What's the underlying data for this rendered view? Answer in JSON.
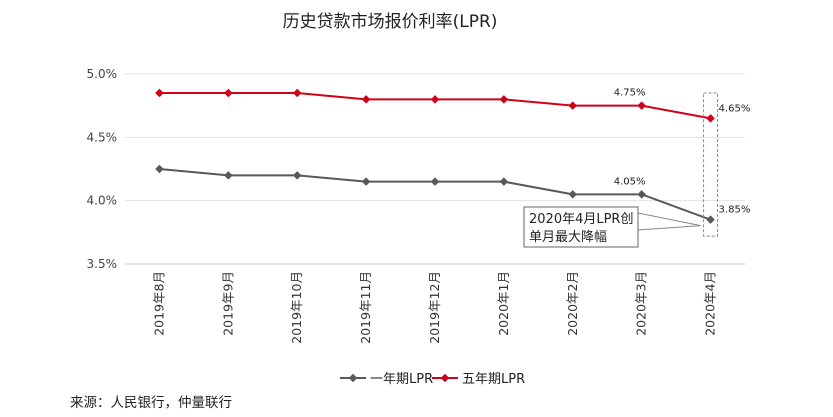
{
  "chart_data": {
    "type": "line",
    "title": "历史贷款市场报价利率(LPR)",
    "categories": [
      "2019年8月",
      "2019年9月",
      "2019年10月",
      "2019年11月",
      "2019年12月",
      "2020年1月",
      "2020年2月",
      "2020年3月",
      "2020年4月"
    ],
    "series": [
      {
        "name": "一年期LPR",
        "color": "#595959",
        "values": [
          4.25,
          4.2,
          4.2,
          4.15,
          4.15,
          4.15,
          4.05,
          4.05,
          3.85
        ]
      },
      {
        "name": "五年期LPR",
        "color": "#d0021b",
        "values": [
          4.85,
          4.85,
          4.85,
          4.8,
          4.8,
          4.8,
          4.75,
          4.75,
          4.65
        ]
      }
    ],
    "ylim": [
      3.5,
      5.0
    ],
    "yticks": [
      "3.5%",
      "4.0%",
      "4.5%",
      "5.0%"
    ],
    "grid": "horizontal",
    "legend": "bottom",
    "data_labels": [
      {
        "series": 0,
        "index": 7,
        "text": "4.05%"
      },
      {
        "series": 0,
        "index": 8,
        "text": "3.85%"
      },
      {
        "series": 1,
        "index": 7,
        "text": "4.75%"
      },
      {
        "series": 1,
        "index": 8,
        "text": "4.65%"
      }
    ],
    "annotation": {
      "lines": [
        "2020年4月LPR创",
        "单月最大降幅"
      ]
    },
    "source": "来源：人民银行，仲量联行"
  }
}
